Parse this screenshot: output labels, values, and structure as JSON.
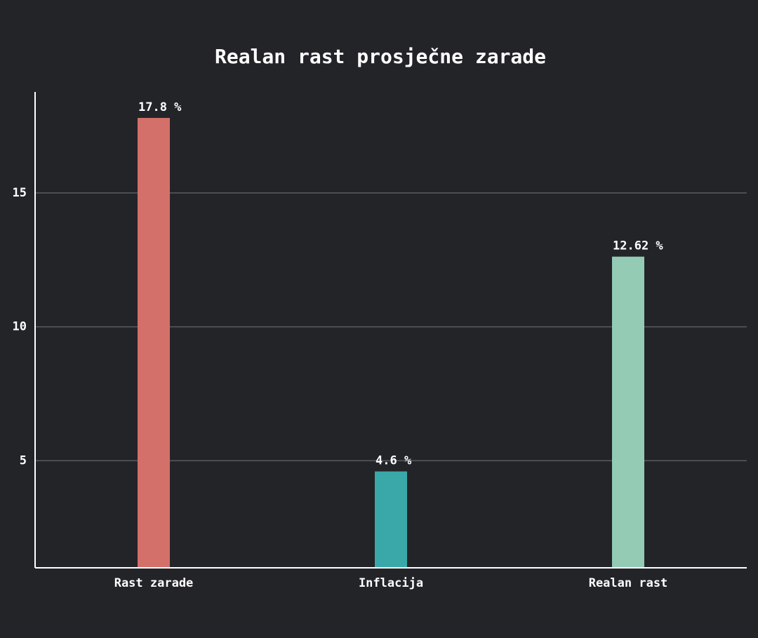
{
  "chart_data": {
    "type": "bar",
    "title": "Realan rast prosječne zarade",
    "categories": [
      "Rast zarade",
      "Inflacija",
      "Realan rast"
    ],
    "values": [
      17.8,
      4.6,
      12.62
    ],
    "value_labels": [
      "17.8 %",
      "4.6 %",
      "12.62 %"
    ],
    "colors": [
      "#d4706a",
      "#3aa8a8",
      "#93cbb4"
    ],
    "ylim": [
      1,
      18.77
    ],
    "yticks": [
      5,
      10,
      15
    ],
    "grid": true
  }
}
